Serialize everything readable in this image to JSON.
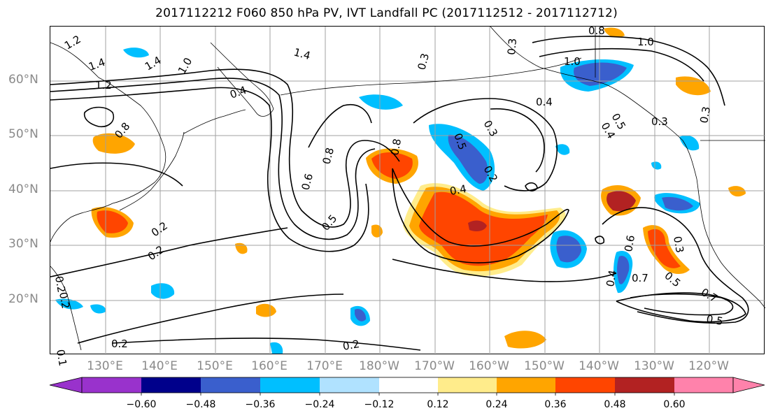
{
  "title": "2017112212 F060 850 hPa PV, IVT Landfall PC (2017112512 - 2017112712)",
  "lat_labels": [
    "60°N",
    "50°N",
    "40°N",
    "30°N",
    "20°N"
  ],
  "lon_labels": [
    "130°E",
    "140°E",
    "150°E",
    "160°E",
    "170°E",
    "180°W",
    "170°W",
    "160°W",
    "150°W",
    "140°W",
    "130°W",
    "120°W"
  ],
  "contour_labels": [
    "1.2",
    "1.4",
    "1.4",
    "1.0",
    "1.2",
    "0.8",
    "0.4",
    "1.4",
    "0.3",
    "0.8",
    "0.6",
    "0.8",
    "0.4",
    "0.2",
    "0.4",
    "0.3",
    "1.0",
    "0.8",
    "1.0",
    "0.4",
    "0.5",
    "0.5",
    "0.3",
    "0.2",
    "0.2",
    "0.3",
    "0.6",
    "0.7",
    "0.5",
    "0.4",
    "0.7",
    "0.3",
    "0.5",
    "0.2",
    "0.2",
    "0.1",
    "0.2",
    "0.3",
    "0.5",
    "0.2"
  ],
  "colorbar": {
    "ticks": [
      "−0.60",
      "−0.48",
      "−0.36",
      "−0.24",
      "−0.12",
      "0.12",
      "0.24",
      "0.36",
      "0.48",
      "0.60"
    ],
    "colors": [
      "#9932cc",
      "#00008b",
      "#3a5fcd",
      "#00bfff",
      "#b0e2ff",
      "#ffffff",
      "#ffec8b",
      "#ffa500",
      "#ff4500",
      "#b22222",
      "#ff82ab"
    ]
  },
  "colors": {
    "contour": "#000000",
    "grid": "#a0a0a0",
    "axis_label": "#8a8a8a"
  }
}
